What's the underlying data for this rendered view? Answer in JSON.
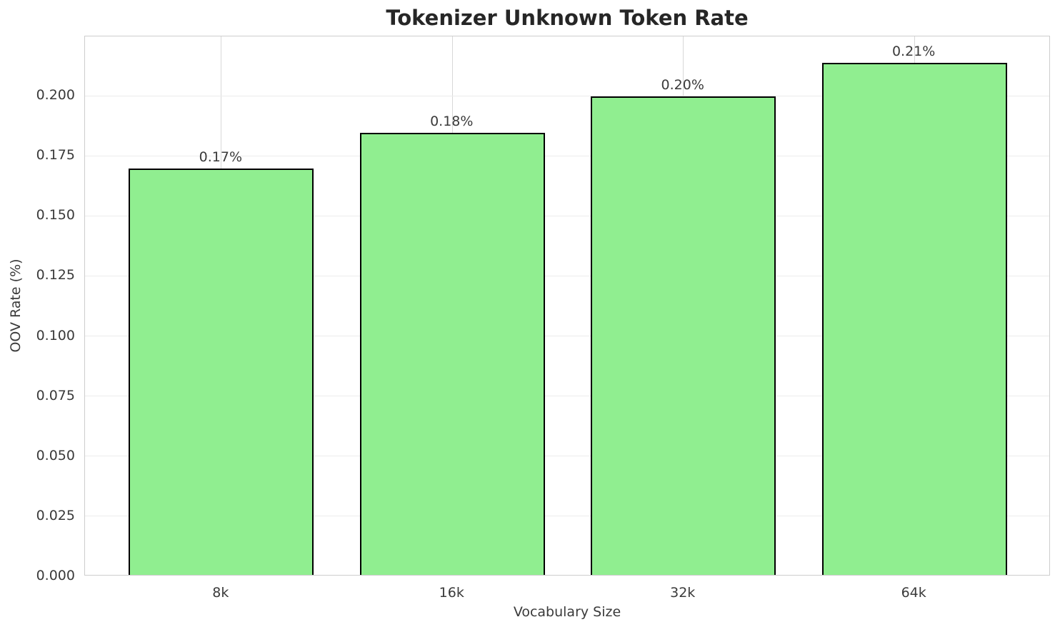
{
  "chart_data": {
    "type": "bar",
    "title": "Tokenizer Unknown Token Rate",
    "xlabel": "Vocabulary Size",
    "ylabel": "OOV Rate (%)",
    "categories": [
      "8k",
      "16k",
      "32k",
      "64k"
    ],
    "values": [
      0.169,
      0.184,
      0.199,
      0.213
    ],
    "bar_value_labels": [
      "0.17%",
      "0.18%",
      "0.20%",
      "0.21%"
    ],
    "yticks": [
      0.0,
      0.025,
      0.05,
      0.075,
      0.1,
      0.125,
      0.15,
      0.175,
      0.2
    ],
    "ytick_labels": [
      "0.000",
      "0.025",
      "0.050",
      "0.075",
      "0.100",
      "0.125",
      "0.150",
      "0.175",
      "0.200"
    ],
    "ylim": [
      0,
      0.2247
    ],
    "xlim": [
      -0.59,
      3.59
    ],
    "bar_width_fraction": 0.8,
    "grid": true,
    "legend": null,
    "bar_color": "#90EE90",
    "bar_edge_color": "#000000",
    "vgrid_color": "#d8d8d8",
    "hgrid_color": "#ececec",
    "spine_color": "#cdcdcd",
    "text_color": "#3a3a3a",
    "title_color": "#262626"
  }
}
